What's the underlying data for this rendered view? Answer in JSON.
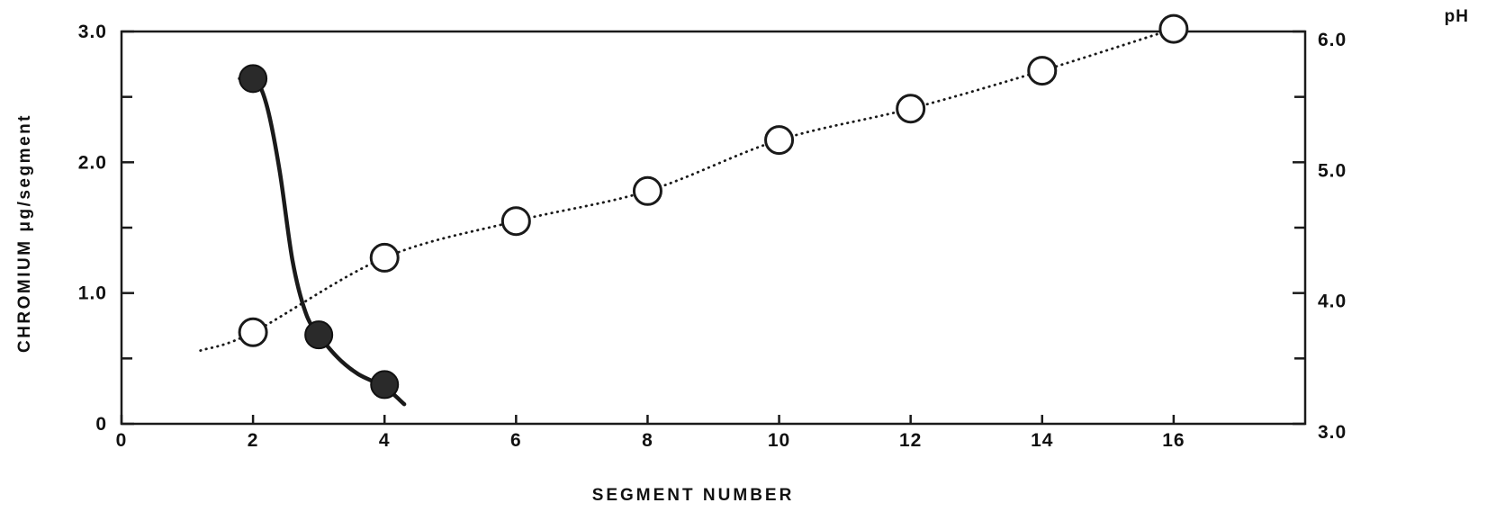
{
  "chart_data": {
    "type": "line",
    "title": "",
    "xlabel": "SEGMENT NUMBER",
    "ylabel": "CHROMIUM μg/segment",
    "y2label": "pH",
    "xlim": [
      0,
      18
    ],
    "ylim": [
      0,
      3.0
    ],
    "y2lim": [
      3.0,
      6.0
    ],
    "xticks": [
      0,
      2,
      4,
      6,
      8,
      10,
      12,
      14,
      16
    ],
    "xtick_labels": [
      "0",
      "2",
      "4",
      "6",
      "8",
      "10",
      "12",
      "14",
      "16"
    ],
    "yticks": [
      0,
      1.0,
      2.0,
      3.0
    ],
    "ytick_labels": [
      "0",
      "1.0",
      "2.0",
      "3.0"
    ],
    "y_minor_ticks": [
      0.5,
      1.5,
      2.5
    ],
    "y2ticks": [
      3.0,
      4.0,
      5.0,
      6.0
    ],
    "y2tick_labels": [
      "3.0",
      "4.0",
      "5.0",
      "6.0"
    ],
    "y2_minor_ticks": [
      3.5,
      4.5,
      5.5
    ],
    "grid": false,
    "legend": "none",
    "series": [
      {
        "axis": "left",
        "marker": "filled-circle",
        "line_style": "solid",
        "color": "#1a1a1a",
        "x": [
          2,
          3,
          4
        ],
        "y": [
          2.64,
          0.68,
          0.3
        ],
        "curve_x": [
          1.8,
          2.0,
          2.2,
          2.4,
          2.6,
          2.8,
          3.0,
          3.3,
          3.6,
          4.0,
          4.3
        ],
        "curve_y": [
          2.64,
          2.66,
          2.45,
          1.95,
          1.25,
          0.85,
          0.68,
          0.5,
          0.38,
          0.28,
          0.15
        ]
      },
      {
        "axis": "right",
        "marker": "open-circle",
        "line_style": "dotted",
        "color": "#1a1a1a",
        "x": [
          2,
          4,
          6,
          8,
          10,
          12,
          14,
          16
        ],
        "y": [
          3.7,
          4.27,
          4.55,
          4.78,
          5.17,
          5.41,
          5.7,
          6.02
        ],
        "curve_x": [
          1.2,
          2,
          4,
          6,
          8,
          10,
          12,
          14,
          16
        ],
        "curve_y": [
          3.56,
          3.7,
          4.27,
          4.55,
          4.78,
          5.17,
          5.41,
          5.7,
          6.02
        ]
      }
    ]
  }
}
